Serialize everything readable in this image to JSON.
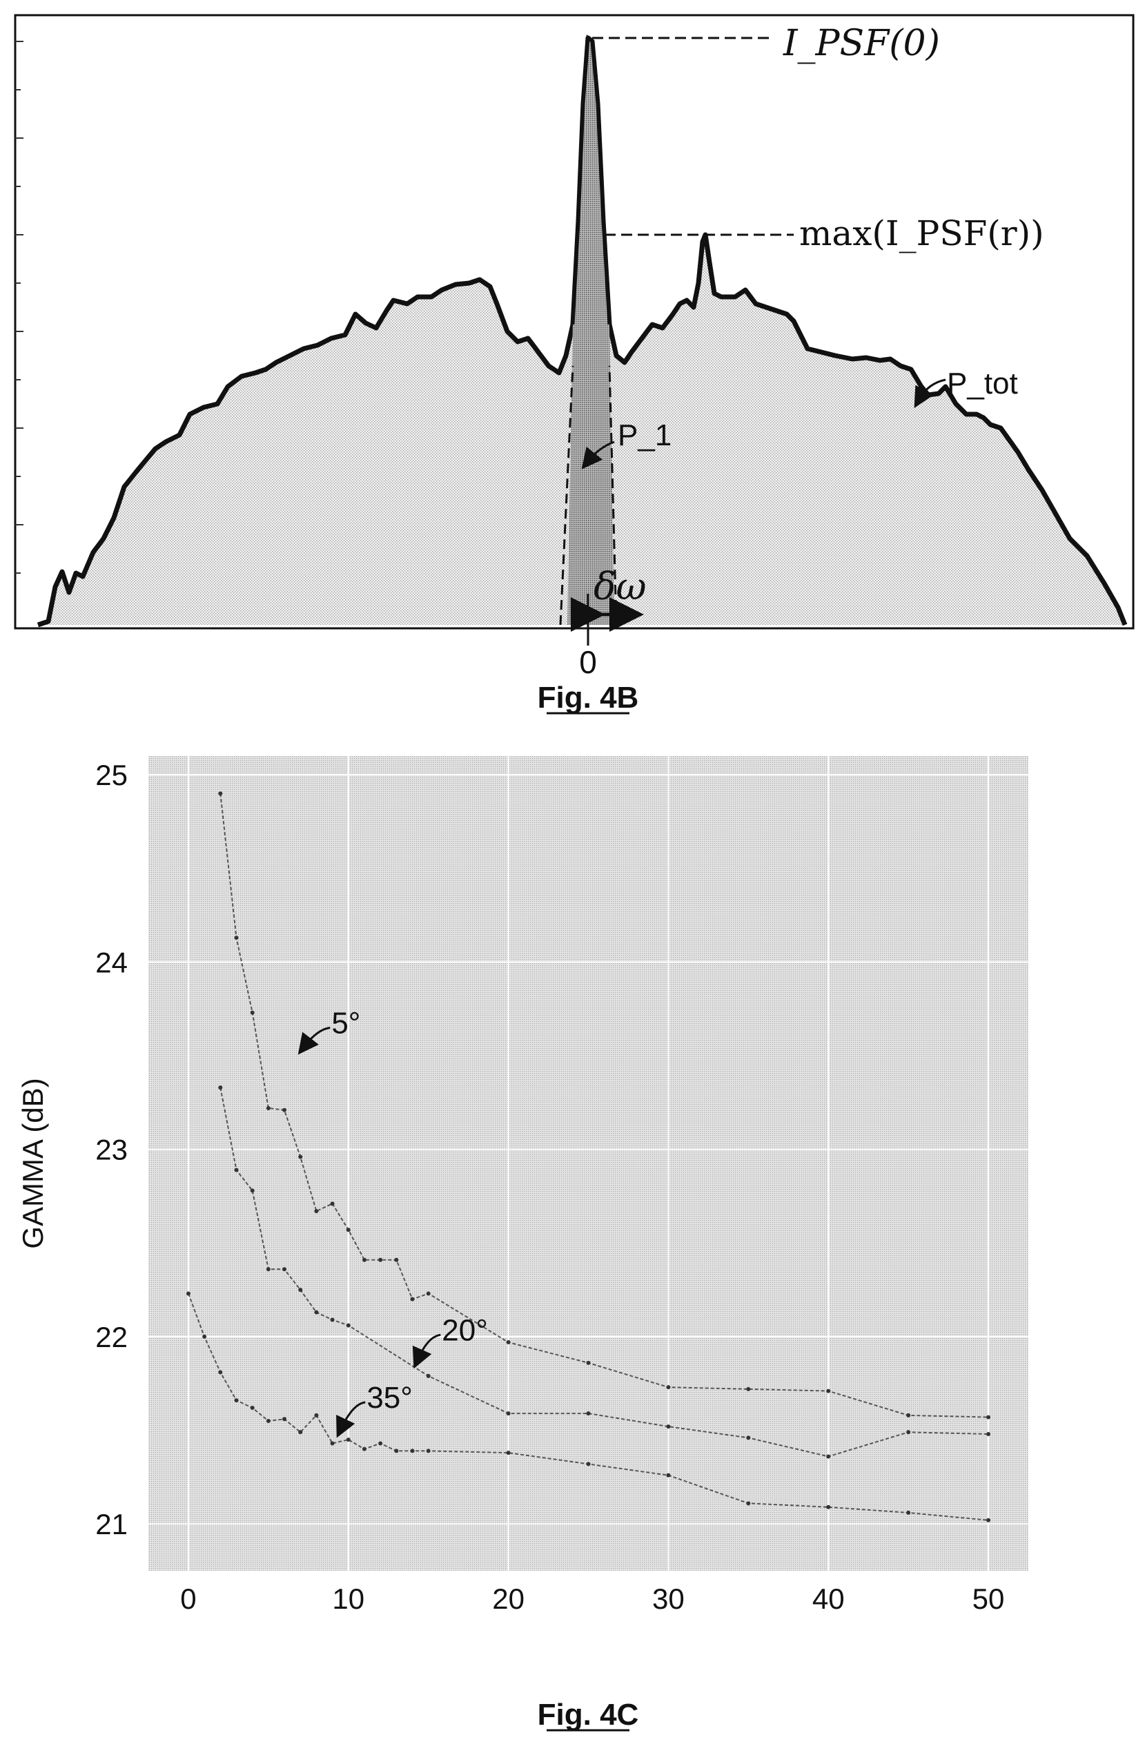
{
  "figure_4b": {
    "caption": "Fig. 4B",
    "labels": {
      "psf_peak": "I_PSF(0)",
      "psf_max_sidelobe": "max(I_PSF(r))",
      "p_tot": "P_tot",
      "p_1": "P_1",
      "delta_omega": "δω",
      "origin": "0"
    }
  },
  "figure_4c": {
    "caption": "Fig. 4C"
  },
  "chart_data": [
    {
      "type": "area",
      "title": "",
      "annotations": [
        "I_PSF(0)",
        "max(I_PSF(r))",
        "P_tot",
        "P_1",
        "δω"
      ],
      "x_tick_labels": [
        "0"
      ],
      "note": "Intensity profile of point spread function; central lobe shaded darker (P_1) inside width δω; total power P_tot under full curve"
    },
    {
      "type": "line",
      "title": "",
      "xlabel": "",
      "ylabel": "GAMMA (dB)",
      "xlim": [
        -2.5,
        52.5
      ],
      "ylim": [
        20.75,
        25.1
      ],
      "xticks": [
        0,
        10,
        20,
        30,
        40,
        50
      ],
      "yticks": [
        21,
        22,
        23,
        24,
        25
      ],
      "grid": true,
      "series": [
        {
          "name": "5°",
          "x": [
            2,
            3,
            4,
            5,
            6,
            7,
            8,
            9,
            10,
            11,
            12,
            13,
            14,
            15,
            20,
            25,
            30,
            35,
            40,
            45,
            50
          ],
          "y": [
            24.9,
            24.13,
            23.73,
            23.22,
            23.21,
            22.96,
            22.67,
            22.71,
            22.57,
            22.41,
            22.41,
            22.41,
            22.2,
            22.23,
            21.97,
            21.86,
            21.73,
            21.72,
            21.71,
            21.58,
            21.57
          ]
        },
        {
          "name": "20°",
          "x": [
            2,
            3,
            4,
            5,
            6,
            7,
            8,
            9,
            10,
            15,
            20,
            25,
            30,
            35,
            40,
            45,
            50
          ],
          "y": [
            23.33,
            22.89,
            22.78,
            22.36,
            22.36,
            22.25,
            22.13,
            22.09,
            22.06,
            21.79,
            21.59,
            21.59,
            21.52,
            21.46,
            21.36,
            21.49,
            21.48
          ],
          "anno_xy": [
            14,
            21.85
          ]
        },
        {
          "name": "35°",
          "x": [
            0,
            1,
            2,
            3,
            4,
            5,
            6,
            7,
            8,
            9,
            10,
            11,
            12,
            13,
            14,
            15,
            20,
            25,
            30,
            35,
            40,
            45,
            50
          ],
          "y": [
            22.23,
            22.0,
            21.81,
            21.66,
            21.62,
            21.55,
            21.56,
            21.49,
            21.58,
            21.43,
            21.45,
            21.4,
            21.43,
            21.39,
            21.39,
            21.39,
            21.38,
            21.32,
            21.26,
            21.11,
            21.09,
            21.06,
            21.02
          ],
          "anno_xy": [
            9,
            21.47
          ]
        }
      ]
    }
  ]
}
